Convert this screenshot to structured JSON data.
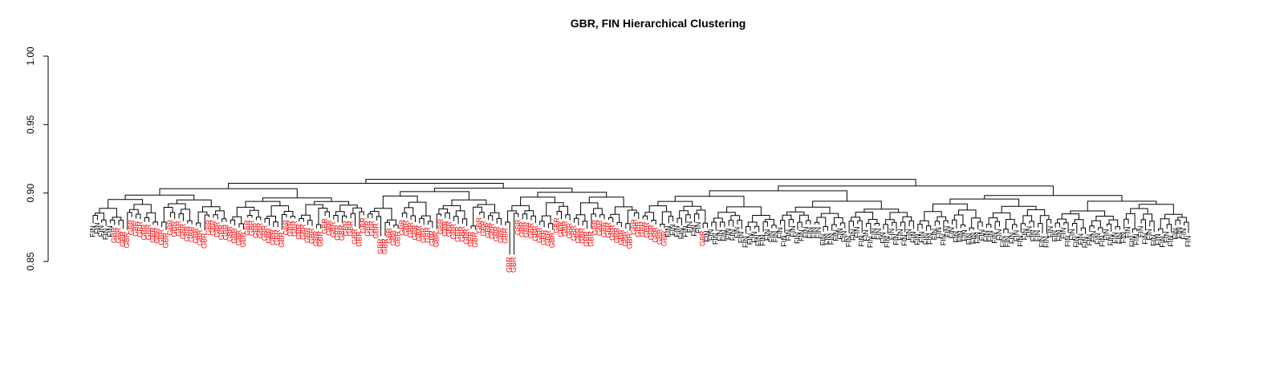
{
  "chart_data": {
    "type": "dendrogram",
    "title": "GBR, FIN Hierarchical Clustering",
    "ylim": [
      0.85,
      1.0
    ],
    "yticks": [
      "0.85",
      "0.90",
      "0.95",
      "1.00"
    ],
    "groups": [
      {
        "label": "FIN",
        "color": "#000000"
      },
      {
        "label": "GBR",
        "color": "#ff0000"
      }
    ],
    "leaf_pattern": {
      "first_fin_leaves": 5,
      "gbr_leaves": 129,
      "mid_fin_leaves": 8,
      "last_gbr_leaf": 1,
      "trailing_fin_leaves": 113
    },
    "notable_low_merges": [
      {
        "label": "GBR",
        "height": 0.8815
      },
      {
        "label": "GBR",
        "height": 0.8685
      },
      {
        "label": "GBR",
        "height": 0.855
      }
    ],
    "root_height": 0.91
  }
}
